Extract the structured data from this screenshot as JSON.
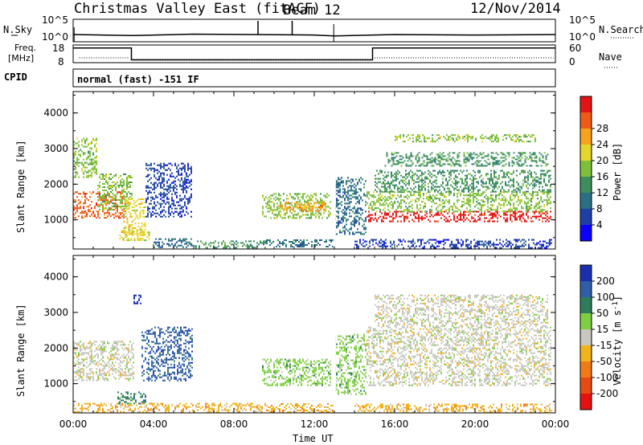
{
  "header": {
    "title": "Christmas Valley East (fitACF)",
    "beam": "Beam 12",
    "date": "12/Nov/2014"
  },
  "status": {
    "nsky_label": "N.Sky",
    "nsearch_label": "N.Search",
    "noise_ticks": [
      "10^5",
      "10^0"
    ],
    "freq_label": [
      "Freq.",
      "[MHz]"
    ],
    "freq_ticks": [
      "18",
      "8"
    ],
    "nave_label": "Nave",
    "nave_ticks": [
      "60",
      "0"
    ],
    "cpid_label": "CPID",
    "cpid_text": "normal (fast) -151 IF"
  },
  "chart_data": [
    {
      "type": "heatmap",
      "title": "",
      "xlabel": "",
      "ylabel": "Slant Range [km]",
      "xlim": [
        0,
        24
      ],
      "ylim": [
        180,
        4600
      ],
      "x_ticks": [
        "00:00",
        "04:00",
        "08:00",
        "12:00",
        "16:00",
        "20:00",
        "00:00"
      ],
      "y_ticks": [
        "1000",
        "2000",
        "3000",
        "4000"
      ],
      "colorbar": {
        "label": "Power [dB]",
        "ticks": [
          "4",
          "8",
          "12",
          "16",
          "20",
          "24",
          "28"
        ],
        "colors": [
          "#0a00ff",
          "#1f3fa8",
          "#2b6f86",
          "#3c8f5c",
          "#7fc03a",
          "#e6d52a",
          "#f7a21c",
          "#f05a17",
          "#e51414"
        ]
      },
      "regions": [
        {
          "t": [
            0.0,
            2.6
          ],
          "r": [
            1050,
            1800
          ],
          "c": 7
        },
        {
          "t": [
            0.0,
            1.2
          ],
          "r": [
            2200,
            3300
          ],
          "c": 4
        },
        {
          "t": [
            1.2,
            2.9
          ],
          "r": [
            1300,
            2300
          ],
          "c": 4
        },
        {
          "t": [
            2.5,
            3.6
          ],
          "r": [
            600,
            1600
          ],
          "c": 5
        },
        {
          "t": [
            3.6,
            5.9
          ],
          "r": [
            1100,
            2600
          ],
          "c": 1
        },
        {
          "t": [
            2.3,
            3.8
          ],
          "r": [
            420,
            720
          ],
          "c": 5
        },
        {
          "t": [
            4.0,
            6.0
          ],
          "r": [
            240,
            480
          ],
          "c": 2
        },
        {
          "t": [
            6.0,
            9.6
          ],
          "r": [
            220,
            420
          ],
          "c": 3
        },
        {
          "t": [
            9.4,
            12.8
          ],
          "r": [
            1050,
            1750
          ],
          "c": 4
        },
        {
          "t": [
            10.2,
            12.6
          ],
          "r": [
            1250,
            1500
          ],
          "c": 6
        },
        {
          "t": [
            9.6,
            12.9
          ],
          "r": [
            230,
            450
          ],
          "c": 2
        },
        {
          "t": [
            13.0,
            14.6
          ],
          "r": [
            600,
            2200
          ],
          "c": 2
        },
        {
          "t": [
            14.6,
            23.8
          ],
          "r": [
            950,
            1250
          ],
          "c": 8
        },
        {
          "t": [
            14.6,
            23.8
          ],
          "r": [
            1250,
            1800
          ],
          "c": 4
        },
        {
          "t": [
            15.0,
            23.8
          ],
          "r": [
            1800,
            2400
          ],
          "c": 3
        },
        {
          "t": [
            15.5,
            23.6
          ],
          "r": [
            2500,
            2900
          ],
          "c": 3
        },
        {
          "t": [
            16.0,
            23.0
          ],
          "r": [
            3200,
            3400
          ],
          "c": 4
        },
        {
          "t": [
            14.0,
            23.8
          ],
          "r": [
            220,
            460
          ],
          "c": 1
        }
      ]
    },
    {
      "type": "heatmap",
      "title": "",
      "xlabel": "Time UT",
      "ylabel": "Slant Range [km]",
      "xlim": [
        0,
        24
      ],
      "ylim": [
        180,
        4600
      ],
      "x_ticks": [
        "00:00",
        "04:00",
        "08:00",
        "12:00",
        "16:00",
        "20:00",
        "00:00"
      ],
      "y_ticks": [
        "1000",
        "2000",
        "3000",
        "4000"
      ],
      "colorbar": {
        "label": "Velocity [m s^-1]",
        "ticks": [
          "200",
          "100",
          "50",
          "15",
          "-15",
          "-50",
          "-100",
          "-200"
        ],
        "colors": [
          "#1a2fb0",
          "#2f5ea8",
          "#2e7d5a",
          "#7ed040",
          "#c8c8c0",
          "#f2b21c",
          "#f07a18",
          "#e84a14",
          "#e61010"
        ]
      },
      "regions": [
        {
          "t": [
            0.0,
            3.0
          ],
          "r": [
            1100,
            2200
          ],
          "c": 4
        },
        {
          "t": [
            3.4,
            5.9
          ],
          "r": [
            1100,
            2600
          ],
          "c": 1
        },
        {
          "t": [
            2.2,
            3.6
          ],
          "r": [
            450,
            780
          ],
          "c": 2
        },
        {
          "t": [
            3.0,
            3.4
          ],
          "r": [
            3150,
            3500
          ],
          "c": 0
        },
        {
          "t": [
            0.0,
            9.6
          ],
          "r": [
            200,
            460
          ],
          "c": 5
        },
        {
          "t": [
            9.4,
            12.8
          ],
          "r": [
            950,
            1700
          ],
          "c": 3
        },
        {
          "t": [
            9.6,
            12.9
          ],
          "r": [
            200,
            450
          ],
          "c": 5
        },
        {
          "t": [
            13.0,
            14.6
          ],
          "r": [
            700,
            2400
          ],
          "c": 3
        },
        {
          "t": [
            14.6,
            23.8
          ],
          "r": [
            950,
            2600
          ],
          "c": 4
        },
        {
          "t": [
            15.0,
            23.6
          ],
          "r": [
            2600,
            3500
          ],
          "c": 4
        },
        {
          "t": [
            14.0,
            23.8
          ],
          "r": [
            200,
            440
          ],
          "c": 5
        }
      ]
    }
  ],
  "noise_series": {
    "nsky": [
      [
        0,
        1.6
      ],
      [
        3,
        1.4
      ],
      [
        6,
        1.7
      ],
      [
        9,
        1.6
      ],
      [
        12,
        1.5
      ],
      [
        13,
        1.3
      ],
      [
        16,
        1.6
      ],
      [
        20,
        1.5
      ],
      [
        24,
        1.6
      ]
    ],
    "spikes": [
      9.2,
      10.9
    ]
  },
  "freq_series": [
    [
      0,
      16.3
    ],
    [
      2.9,
      16.3
    ],
    [
      2.9,
      9.6
    ],
    [
      14.9,
      9.6
    ],
    [
      14.9,
      16.3
    ],
    [
      24,
      16.3
    ]
  ]
}
